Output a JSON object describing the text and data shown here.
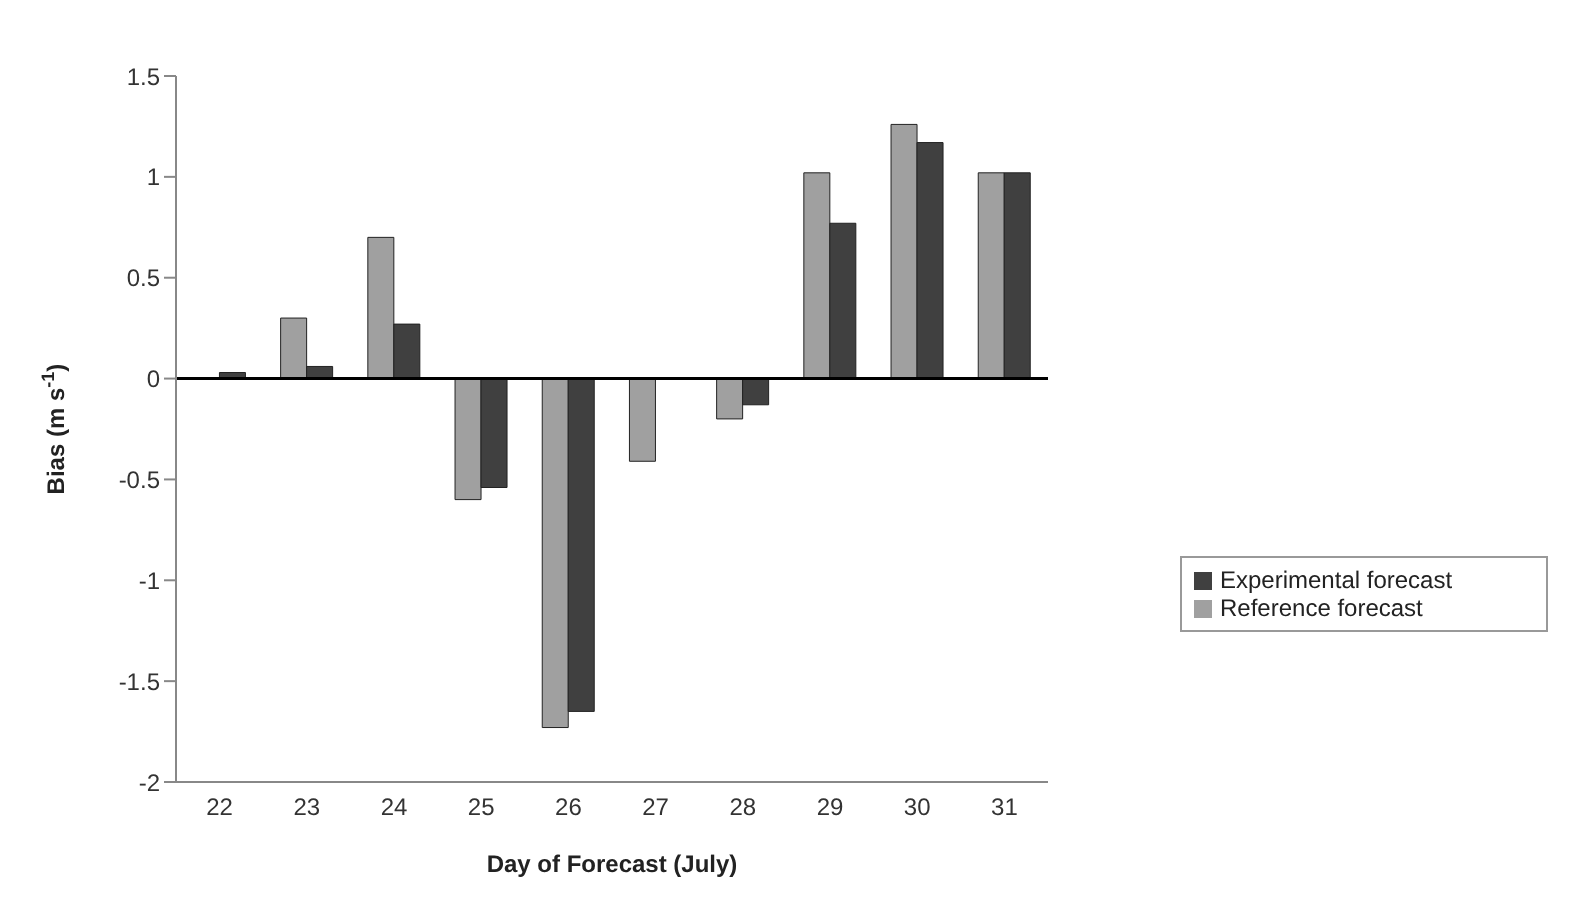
{
  "chart_data": {
    "type": "bar",
    "xlabel": "Day of Forecast (July)",
    "ylabel": "Bias (m s$^{-1}$)",
    "categories": [
      "22",
      "23",
      "24",
      "25",
      "26",
      "27",
      "28",
      "29",
      "30",
      "31"
    ],
    "series": [
      {
        "name": "Reference forecast",
        "color": "#a0a0a0",
        "values": [
          0,
          0.3,
          0.7,
          -0.6,
          -1.73,
          -0.41,
          -0.2,
          1.02,
          1.26,
          1.02
        ]
      },
      {
        "name": "Experimental forecast",
        "color": "#404040",
        "values": [
          0.03,
          0.06,
          0.27,
          -0.54,
          -1.65,
          0,
          -0.13,
          0.77,
          1.17,
          1.02
        ]
      }
    ],
    "ylim": [
      -2,
      1.5
    ],
    "yticks": [
      -2,
      -1.5,
      -1,
      -0.5,
      0,
      0.5,
      1,
      1.5
    ],
    "ref_lines": [
      {
        "axis": "y",
        "value": 0,
        "color": "#000000"
      }
    ],
    "legend": "right"
  }
}
